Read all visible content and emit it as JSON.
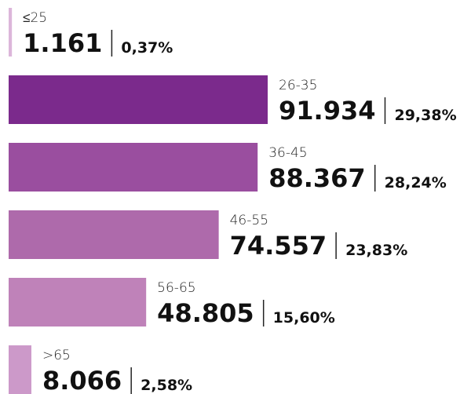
{
  "chart_data": {
    "type": "bar",
    "orientation": "horizontal",
    "categories": [
      "≤25",
      "26-35",
      "36-45",
      "46-55",
      "56-65",
      ">65"
    ],
    "values": [
      1161,
      91934,
      88367,
      74557,
      48805,
      8066
    ],
    "value_labels": [
      "1.161",
      "91.934",
      "88.367",
      "74.557",
      "48.805",
      "8.066"
    ],
    "shares": [
      0.37,
      29.38,
      28.24,
      23.83,
      15.6,
      2.58
    ],
    "share_labels": [
      "0,37%",
      "29,38%",
      "28,24%",
      "23,83%",
      "15,60%",
      "2,58%"
    ],
    "colors": [
      "#dcb6da",
      "#7b2a8c",
      "#9a4e9f",
      "#ae6aab",
      "#bf82b9",
      "#cc99c9"
    ]
  }
}
